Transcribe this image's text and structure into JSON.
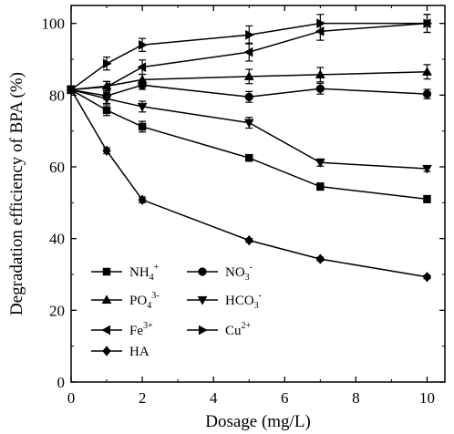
{
  "chart_data": {
    "type": "line",
    "title": "",
    "xlabel": "Dosage (mg/L)",
    "ylabel": "Degradation efficiency of BPA (%)",
    "xlim": [
      0,
      10.5
    ],
    "ylim": [
      0,
      105
    ],
    "xticks": [
      0,
      2,
      4,
      6,
      8,
      10
    ],
    "yticks": [
      0,
      20,
      40,
      60,
      80,
      100
    ],
    "grid": false,
    "legend_position": "bottom-left",
    "series": [
      {
        "name": "NH4+",
        "name_base": "NH",
        "name_sub": "4",
        "name_sup": "+",
        "marker": "square",
        "x": [
          0,
          1,
          2,
          5,
          7,
          10
        ],
        "y": [
          81.5,
          75.8,
          71.2,
          62.5,
          54.5,
          51.0
        ],
        "err": [
          1.0,
          1.5,
          1.5,
          0.8,
          1.0,
          1.0
        ]
      },
      {
        "name": "NO3-",
        "name_base": "NO",
        "name_sub": "3",
        "name_sup": "-",
        "marker": "circle",
        "x": [
          0,
          1,
          2,
          5,
          7,
          10
        ],
        "y": [
          81.5,
          79.8,
          82.8,
          79.5,
          81.8,
          80.3
        ],
        "err": [
          1.0,
          1.0,
          1.2,
          1.5,
          1.5,
          1.3
        ]
      },
      {
        "name": "PO43-",
        "name_base": "PO",
        "name_sub": "4",
        "name_sup": "3-",
        "marker": "triangle-up",
        "x": [
          0,
          1,
          2,
          5,
          7,
          10
        ],
        "y": [
          81.5,
          82.5,
          84.3,
          85.2,
          85.7,
          86.5
        ],
        "err": [
          1.0,
          1.3,
          1.5,
          2.0,
          2.0,
          2.0
        ]
      },
      {
        "name": "HCO3-",
        "name_base": "HCO",
        "name_sub": "3",
        "name_sup": "-",
        "marker": "triangle-down",
        "x": [
          0,
          1,
          2,
          5,
          7,
          10
        ],
        "y": [
          81.5,
          79.0,
          76.8,
          72.3,
          61.2,
          59.5
        ],
        "err": [
          1.0,
          1.3,
          1.5,
          1.5,
          1.0,
          0.8
        ]
      },
      {
        "name": "Fe3+",
        "name_base": "Fe",
        "name_sub": "",
        "name_sup": "3+",
        "marker": "triangle-left",
        "x": [
          0,
          1,
          2,
          5,
          7,
          10
        ],
        "y": [
          81.5,
          82.3,
          87.8,
          92.0,
          97.8,
          100.0
        ],
        "err": [
          1.0,
          1.5,
          2.0,
          2.5,
          2.5,
          2.5
        ]
      },
      {
        "name": "Cu2+",
        "name_base": "Cu",
        "name_sub": "",
        "name_sup": "2+",
        "marker": "triangle-right",
        "x": [
          0,
          1,
          2,
          5,
          7,
          10
        ],
        "y": [
          81.5,
          88.8,
          94.0,
          96.8,
          100.0,
          100.0
        ],
        "err": [
          1.0,
          1.8,
          1.8,
          2.5,
          2.5,
          2.5
        ]
      },
      {
        "name": "HA",
        "name_base": "HA",
        "name_sub": "",
        "name_sup": "",
        "marker": "diamond",
        "x": [
          0,
          1,
          2,
          5,
          7,
          10
        ],
        "y": [
          81.5,
          64.5,
          50.8,
          39.5,
          34.3,
          29.3
        ],
        "err": [
          1.0,
          0.8,
          0.8,
          0.5,
          0.5,
          0.5
        ]
      }
    ]
  }
}
